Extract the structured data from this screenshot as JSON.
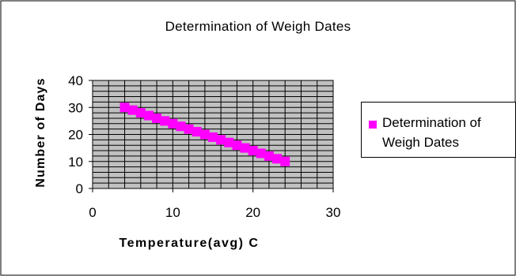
{
  "chart_data": {
    "type": "scatter",
    "title": "Determination of Weigh Dates",
    "xlabel": "Temperature(avg)  C",
    "ylabel": "Number of Days",
    "xlim": [
      0,
      30
    ],
    "ylim": [
      0,
      40
    ],
    "x_ticks": [
      "0",
      "10",
      "20",
      "30"
    ],
    "y_ticks": [
      "0",
      "10",
      "20",
      "30",
      "40"
    ],
    "grid": true,
    "legend_position": "right",
    "series": [
      {
        "name": "Determination of Weigh Dates",
        "marker": "square",
        "x": [
          4,
          5,
          6,
          7,
          8,
          9,
          10,
          11,
          12,
          13,
          14,
          15,
          16,
          17,
          18,
          19,
          20,
          21,
          22,
          23,
          24
        ],
        "y": [
          30,
          29,
          28,
          27,
          26,
          25,
          24,
          23,
          22,
          21,
          20,
          19,
          18,
          17,
          16,
          15,
          14,
          13,
          12,
          11,
          10
        ]
      }
    ],
    "colors": {
      "series": "#ff00ff",
      "plot_background": "#c0c0c0",
      "gridline": "#000000"
    }
  }
}
